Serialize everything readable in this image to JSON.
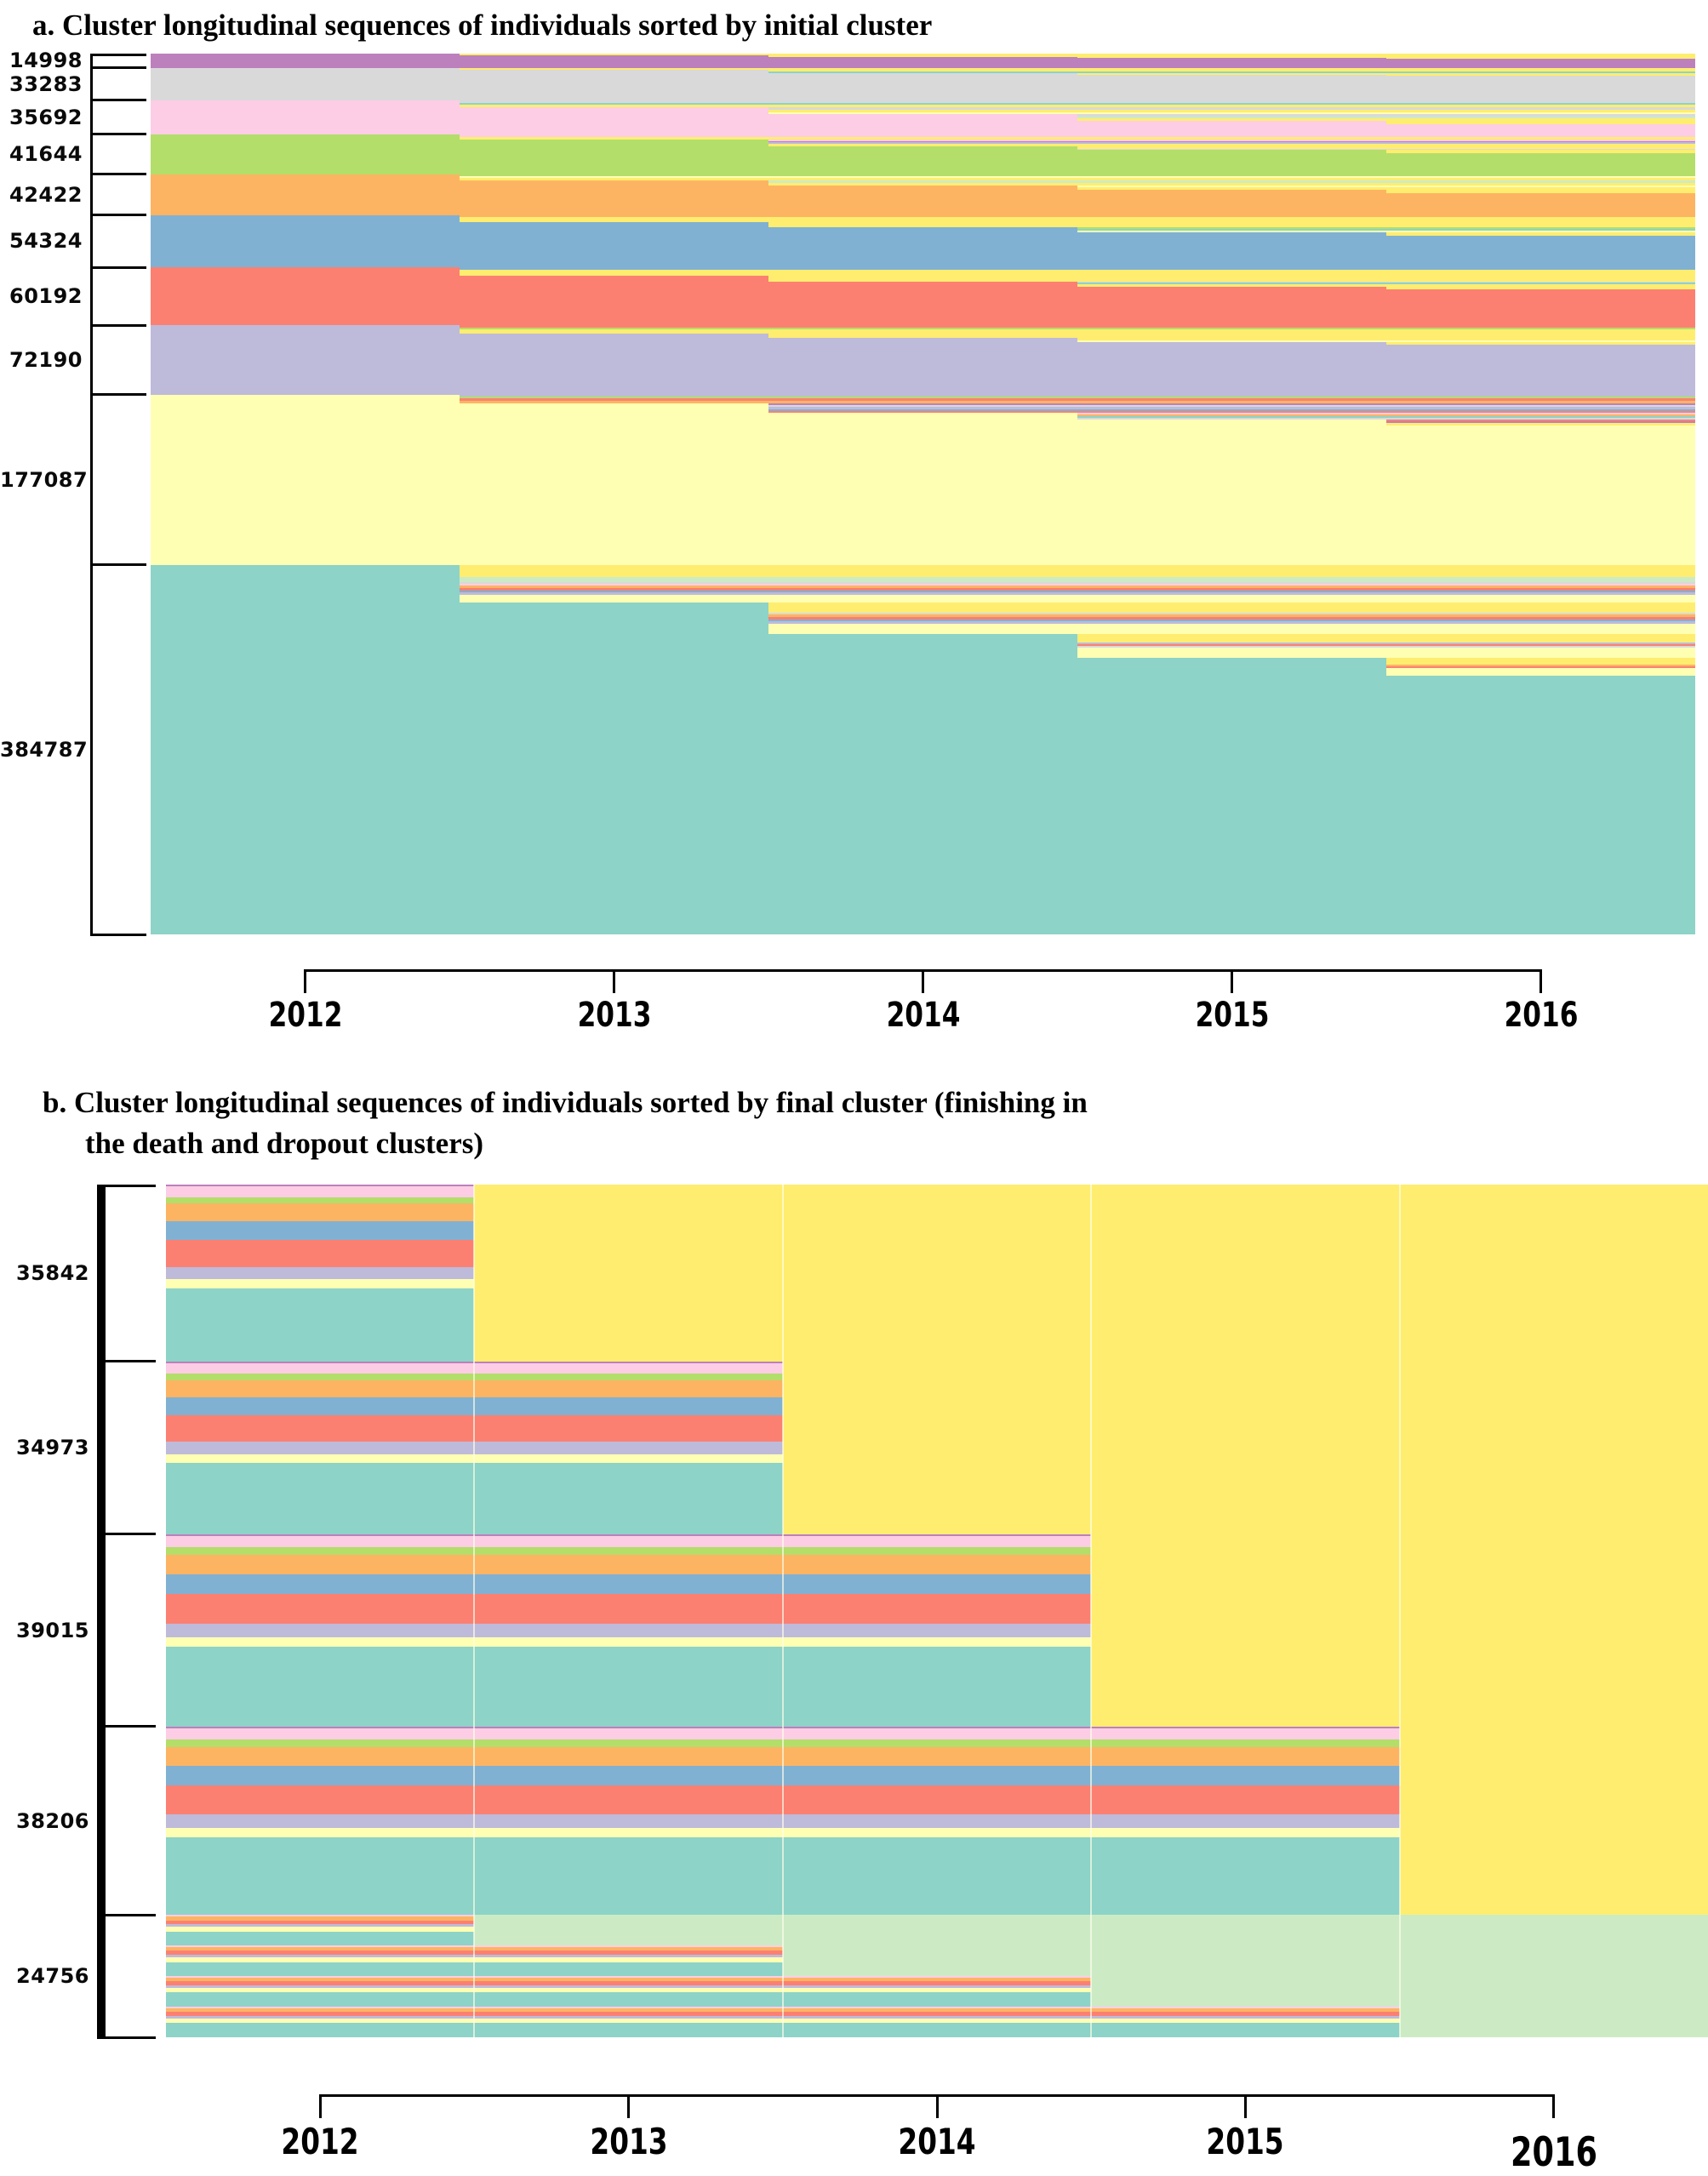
{
  "colors": {
    "orchid": "#bc80bd",
    "gray": "#d9d9d9",
    "pink": "#fccde5",
    "green": "#b3de69",
    "orange": "#fdb462",
    "blue": "#80b1d3",
    "salmon": "#fb8072",
    "lavender": "#bebada",
    "pale_yellow": "#ffffb3",
    "teal": "#8dd3c7",
    "death_yellow": "#ffed6f",
    "dropout_green": "#ccebc5"
  },
  "chart_data": {
    "type": "heatmap",
    "subtype": "longitudinal-sequence-index-plot",
    "x_axis": {
      "ticks": [
        "2012",
        "2013",
        "2014",
        "2015",
        "2016"
      ],
      "range": [
        2011.5,
        2016.5
      ]
    },
    "step_fractions": [
      0.2,
      0.4,
      0.6,
      0.8
    ],
    "states": {
      "death_color_key": "death_yellow",
      "dropout_color_key": "dropout_green"
    },
    "panel_a": {
      "title": "a. Cluster longitudinal sequences of individuals sorted by initial cluster",
      "clusters": [
        {
          "label": "14998",
          "size": 14998,
          "color": "orchid",
          "step_stripes": [
            [
              [
                "death_yellow",
                2
              ]
            ],
            [
              [
                "death_yellow",
                1.5
              ]
            ],
            [
              [
                "death_yellow",
                1.5
              ]
            ],
            [
              [
                "death_yellow",
                1
              ]
            ]
          ]
        },
        {
          "label": "33283",
          "size": 33283,
          "color": "gray",
          "step_stripes": [
            [
              [
                "death_yellow",
                2.5
              ]
            ],
            [
              [
                "death_yellow",
                2
              ],
              [
                "teal",
                1.5
              ]
            ],
            [
              [
                "death_yellow",
                2
              ]
            ],
            [
              [
                "death_yellow",
                1.5
              ]
            ]
          ]
        },
        {
          "label": "35692",
          "size": 35692,
          "color": "pink",
          "step_stripes": [
            [
              [
                "gray",
                3
              ],
              [
                "teal",
                2.5
              ],
              [
                "death_yellow",
                3
              ]
            ],
            [
              [
                "gray",
                3
              ],
              [
                "death_yellow",
                3
              ],
              [
                "pale_yellow",
                2
              ]
            ],
            [
              [
                "gray",
                3
              ],
              [
                "dropout_green",
                2
              ],
              [
                "death_yellow",
                3
              ]
            ],
            [
              [
                "death_yellow",
                4
              ]
            ]
          ]
        },
        {
          "label": "41644",
          "size": 41644,
          "color": "green",
          "step_stripes": [
            [
              [
                "pink",
                3
              ],
              [
                "death_yellow",
                3
              ]
            ],
            [
              [
                "pink",
                2
              ],
              [
                "orchid",
                1.5
              ],
              [
                "lavender",
                1.5
              ],
              [
                "death_yellow",
                3
              ]
            ],
            [
              [
                "death_yellow",
                3
              ],
              [
                "gray",
                1.5
              ]
            ],
            [
              [
                "death_yellow",
                4
              ]
            ]
          ]
        },
        {
          "label": "42422",
          "size": 42422,
          "color": "orange",
          "step_stripes": [
            [
              [
                "green",
                2.5
              ],
              [
                "pale_yellow",
                2
              ],
              [
                "death_yellow",
                3
              ]
            ],
            [
              [
                "dropout_green",
                2.5
              ],
              [
                "death_yellow",
                3
              ]
            ],
            [
              [
                "pale_yellow",
                2
              ],
              [
                "death_yellow",
                3
              ]
            ],
            [
              [
                "death_yellow",
                4
              ]
            ]
          ]
        },
        {
          "label": "54324",
          "size": 54324,
          "color": "blue",
          "step_stripes": [
            [
              [
                "orange",
                2.5
              ],
              [
                "death_yellow",
                6
              ]
            ],
            [
              [
                "death_yellow",
                6
              ]
            ],
            [
              [
                "green",
                2
              ],
              [
                "teal",
                2
              ],
              [
                "pale_yellow",
                2
              ]
            ],
            [
              [
                "death_yellow",
                4
              ]
            ]
          ]
        },
        {
          "label": "60192",
          "size": 60192,
          "color": "salmon",
          "step_stripes": [
            [
              [
                "blue",
                2.5
              ],
              [
                "death_yellow",
                7
              ]
            ],
            [
              [
                "death_yellow",
                7
              ]
            ],
            [
              [
                "gray",
                1.5
              ],
              [
                "teal",
                1.5
              ],
              [
                "death_yellow",
                3
              ]
            ],
            [
              [
                "death_yellow",
                3.5
              ]
            ]
          ]
        },
        {
          "label": "72190",
          "size": 72190,
          "color": "lavender",
          "step_stripes": [
            [
              [
                "salmon",
                2.5
              ],
              [
                "green",
                2
              ],
              [
                "death_yellow",
                5
              ]
            ],
            [
              [
                "death_yellow",
                5
              ]
            ],
            [
              [
                "death_yellow",
                3
              ],
              [
                "pale_yellow",
                2
              ]
            ],
            [
              [
                "death_yellow",
                3.5
              ]
            ]
          ]
        },
        {
          "label": "177087",
          "size": 177087,
          "color": "pale_yellow",
          "step_stripes": [
            [
              [
                "lavender",
                2.5
              ],
              [
                "green",
                2
              ],
              [
                "salmon",
                2.5
              ],
              [
                "orange",
                3
              ]
            ],
            [
              [
                "orchid",
                2
              ],
              [
                "gray",
                2.5
              ],
              [
                "lavender",
                2.5
              ],
              [
                "blue",
                2
              ],
              [
                "salmon",
                2.5
              ]
            ],
            [
              [
                "pink",
                2
              ],
              [
                "orange",
                2
              ],
              [
                "teal",
                2
              ],
              [
                "gray",
                2
              ]
            ],
            [
              [
                "salmon",
                2
              ],
              [
                "orchid",
                2
              ],
              [
                "death_yellow",
                2.5
              ]
            ]
          ]
        },
        {
          "label": "384787",
          "size": 384787,
          "color": "teal",
          "step_stripes": [
            [
              [
                "death_yellow",
                14
              ],
              [
                "dropout_green",
                6
              ],
              [
                "gray",
                2
              ],
              [
                "pink",
                2
              ],
              [
                "orange",
                3
              ],
              [
                "salmon",
                3
              ],
              [
                "blue",
                2
              ],
              [
                "lavender",
                3
              ],
              [
                "pale_yellow",
                9
              ]
            ],
            [
              [
                "death_yellow",
                12
              ],
              [
                "gray",
                2
              ],
              [
                "orange",
                3
              ],
              [
                "salmon",
                3
              ],
              [
                "blue",
                2
              ],
              [
                "lavender",
                3
              ],
              [
                "pale_yellow",
                12
              ]
            ],
            [
              [
                "death_yellow",
                10
              ],
              [
                "lavender",
                2
              ],
              [
                "salmon",
                2
              ],
              [
                "gray",
                2
              ],
              [
                "pale_yellow",
                12
              ]
            ],
            [
              [
                "death_yellow",
                8
              ],
              [
                "orange",
                2
              ],
              [
                "salmon",
                2
              ],
              [
                "pale_yellow",
                9
              ]
            ]
          ]
        }
      ]
    },
    "panel_b": {
      "title_line1": "b. Cluster longitudinal sequences of individuals sorted by final cluster (finishing in",
      "title_line2": "the death and dropout clusters)",
      "composition": [
        [
          "orchid",
          0.01
        ],
        [
          "pink",
          0.06
        ],
        [
          "green",
          0.037
        ],
        [
          "orange",
          0.102
        ],
        [
          "blue",
          0.102
        ],
        [
          "salmon",
          0.155
        ],
        [
          "lavender",
          0.07
        ],
        [
          "pale_yellow",
          0.05
        ],
        [
          "teal",
          0.414
        ]
      ],
      "groups": [
        {
          "label": "35842",
          "size": 35842,
          "final_state": "death_yellow",
          "final_from_column": 1
        },
        {
          "label": "34973",
          "size": 34973,
          "final_state": "death_yellow",
          "final_from_column": 2
        },
        {
          "label": "39015",
          "size": 39015,
          "final_state": "death_yellow",
          "final_from_column": 3
        },
        {
          "label": "38206",
          "size": 38206,
          "final_state": "death_yellow",
          "final_from_column": 4
        },
        {
          "label": "24756",
          "size": 24756,
          "final_state": "dropout_green",
          "dropout_subblocks": 4,
          "sub_composition": [
            [
              "pink",
              0.055
            ],
            [
              "orange",
              0.115
            ],
            [
              "salmon",
              0.135
            ],
            [
              "lavender",
              0.075
            ],
            [
              "pale_yellow",
              0.155
            ],
            [
              "teal",
              0.465
            ]
          ]
        }
      ]
    }
  }
}
